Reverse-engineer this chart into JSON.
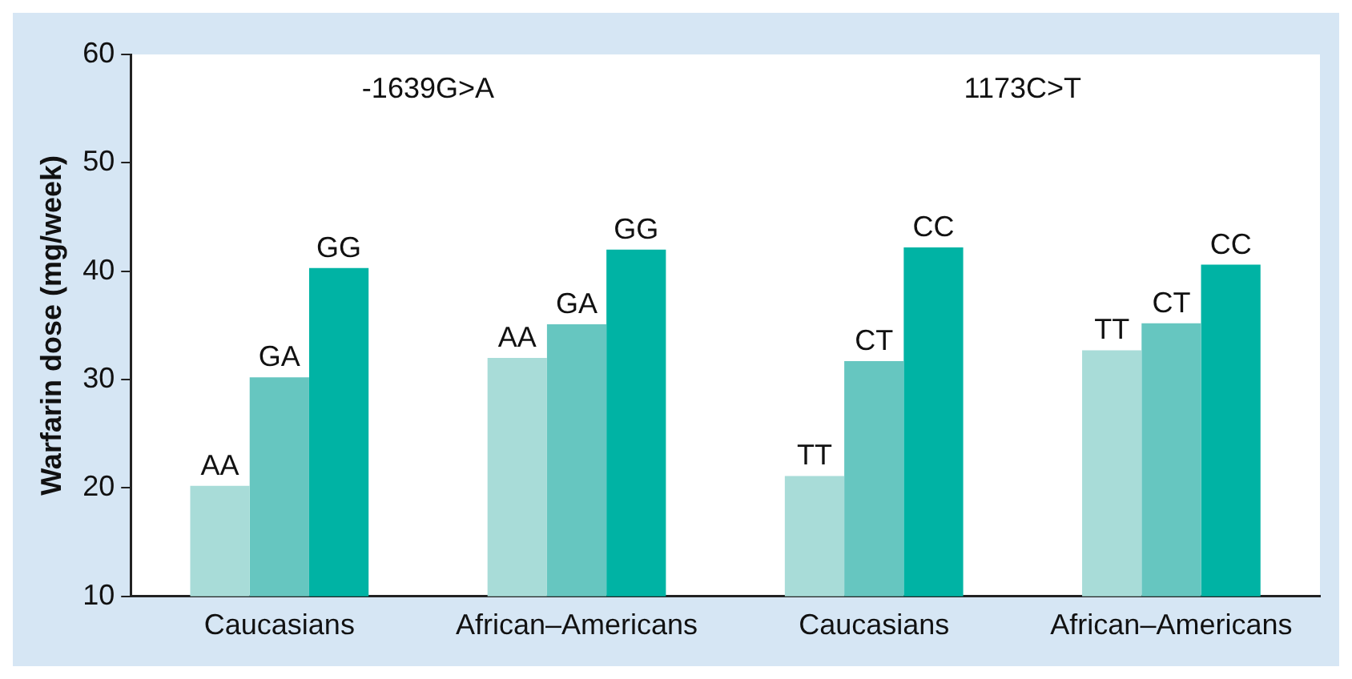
{
  "chart_data": {
    "type": "bar",
    "ylabel": "Warfarin dose (mg/week)",
    "categories": [
      "Caucasians",
      "African–Americans",
      "Caucasians",
      "African–Americans"
    ],
    "series": [
      {
        "color": "#a8dcd8",
        "values": [
          20.2,
          32,
          21.1,
          32.7
        ],
        "value_labels": [
          "AA",
          "AA",
          "TT",
          "TT"
        ]
      },
      {
        "color": "#66c6c0",
        "values": [
          30.2,
          35.1,
          31.7,
          35.2
        ],
        "value_labels": [
          "GA",
          "GA",
          "CT",
          "CT"
        ]
      },
      {
        "color": "#00b3a4",
        "values": [
          40.3,
          42,
          42.2,
          40.6
        ],
        "value_labels": [
          "GG",
          "GG",
          "CC",
          "CC"
        ]
      }
    ],
    "ylim": [
      10,
      60
    ],
    "yticks": [
      10,
      20,
      30,
      40,
      50,
      60
    ],
    "grid": false,
    "legend": false,
    "annotations": [
      "-1639G>A",
      "1173C>T"
    ]
  }
}
